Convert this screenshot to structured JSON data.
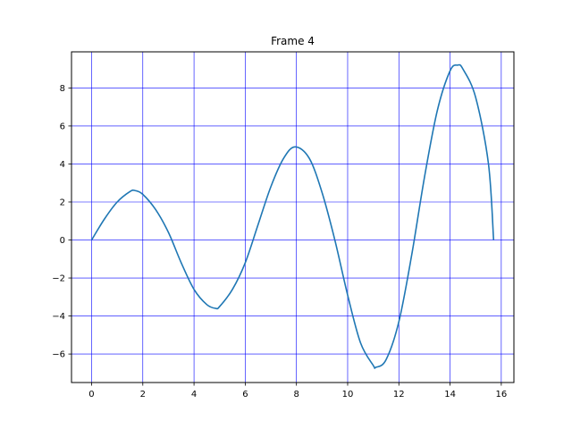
{
  "chart_data": {
    "type": "line",
    "title": "Frame 4",
    "xlabel": "",
    "ylabel": "",
    "xlim": [
      -0.785,
      16.493
    ],
    "ylim": [
      -7.5,
      9.9
    ],
    "grid": true,
    "grid_color": "#0000ff",
    "line_color": "#1f77b4",
    "x_ticks": [
      0,
      2,
      4,
      6,
      8,
      10,
      12,
      14,
      16
    ],
    "x_tick_labels": [
      "0",
      "2",
      "4",
      "6",
      "8",
      "10",
      "12",
      "14",
      "16"
    ],
    "y_ticks": [
      -6,
      -4,
      -2,
      0,
      2,
      4,
      6,
      8
    ],
    "y_tick_labels": [
      "−6",
      "−4",
      "−2",
      "0",
      "2",
      "4",
      "6",
      "8"
    ],
    "series": [
      {
        "x": [
          0,
          0.5,
          1.0,
          1.5,
          1.7,
          2.0,
          2.5,
          3.0,
          3.5,
          4.0,
          4.5,
          4.85,
          5.0,
          5.5,
          6.0,
          6.5,
          7.0,
          7.5,
          7.95,
          8.5,
          9.0,
          9.5,
          10.0,
          10.5,
          11.0,
          11.1,
          11.5,
          12.0,
          12.5,
          13.0,
          13.5,
          14.0,
          14.3,
          14.5,
          15.0,
          15.5,
          15.7
        ],
        "y": [
          0,
          1.1,
          2.0,
          2.55,
          2.6,
          2.4,
          1.6,
          0.4,
          -1.2,
          -2.6,
          -3.4,
          -3.6,
          -3.5,
          -2.6,
          -1.2,
          0.8,
          2.8,
          4.3,
          4.9,
          4.3,
          2.5,
          0.0,
          -2.9,
          -5.4,
          -6.6,
          -6.7,
          -6.3,
          -4.3,
          -0.8,
          3.3,
          6.8,
          8.9,
          9.2,
          9.0,
          7.5,
          4.0,
          0.0
        ]
      }
    ]
  }
}
